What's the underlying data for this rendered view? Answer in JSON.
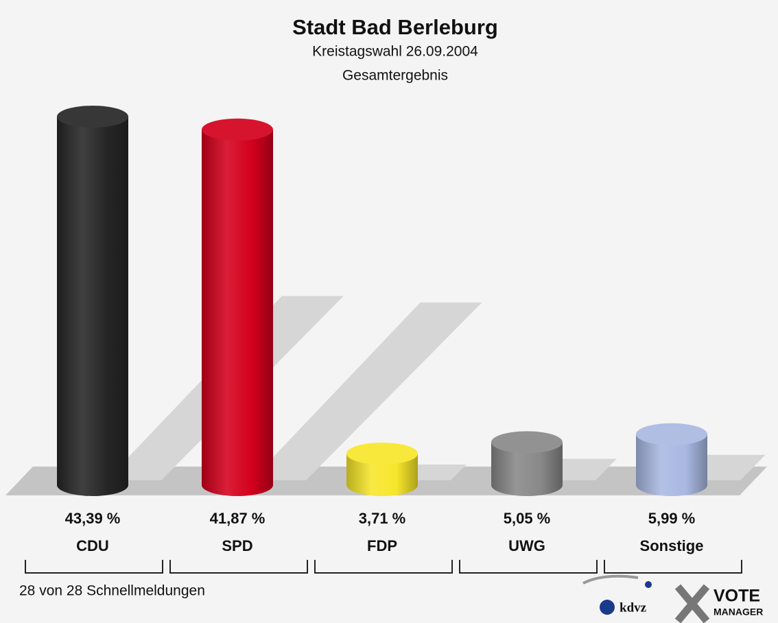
{
  "chart_data": {
    "type": "bar",
    "title": "Stadt Bad Berleburg",
    "subtitle": "Kreistagswahl 26.09.2004",
    "subtitle2": "Gesamtergebnis",
    "categories": [
      "CDU",
      "SPD",
      "FDP",
      "UWG",
      "Sonstige"
    ],
    "values": [
      43.39,
      41.87,
      3.71,
      5.05,
      5.99
    ],
    "value_labels": [
      "43,39 %",
      "41,87 %",
      "3,71 %",
      "5,05 %",
      "5,99 %"
    ],
    "colors": [
      "#262626",
      "#d4001c",
      "#f7e62a",
      "#888888",
      "#a9b8e2"
    ],
    "footer": "28 von 28 Schnellmeldungen",
    "logo": {
      "left": "kdvz",
      "right_top": "VOTE",
      "right_bottom": "MANAGER"
    }
  }
}
